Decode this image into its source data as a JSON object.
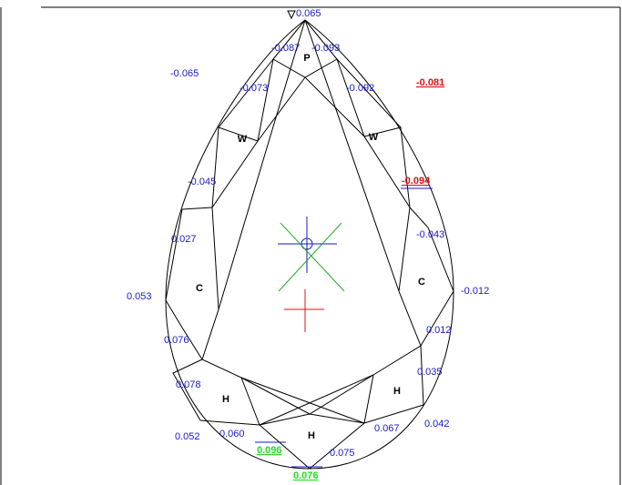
{
  "measurements": [
    "0.065",
    "-0.087",
    "-0.093",
    "-0.065",
    "-0.073",
    "-0.092",
    "-0.081",
    "-0.045",
    "-0.094",
    "0.027",
    "-0.043",
    "0.053",
    "-0.012",
    "0.012",
    "0.076",
    "0.035",
    "0.078",
    "0.042",
    "0.052",
    "0.060",
    "0.096",
    "0.067",
    "0.075",
    "0.076"
  ],
  "facets": [
    "P",
    "W",
    "W",
    "C",
    "C",
    "H",
    "H",
    "H"
  ]
}
